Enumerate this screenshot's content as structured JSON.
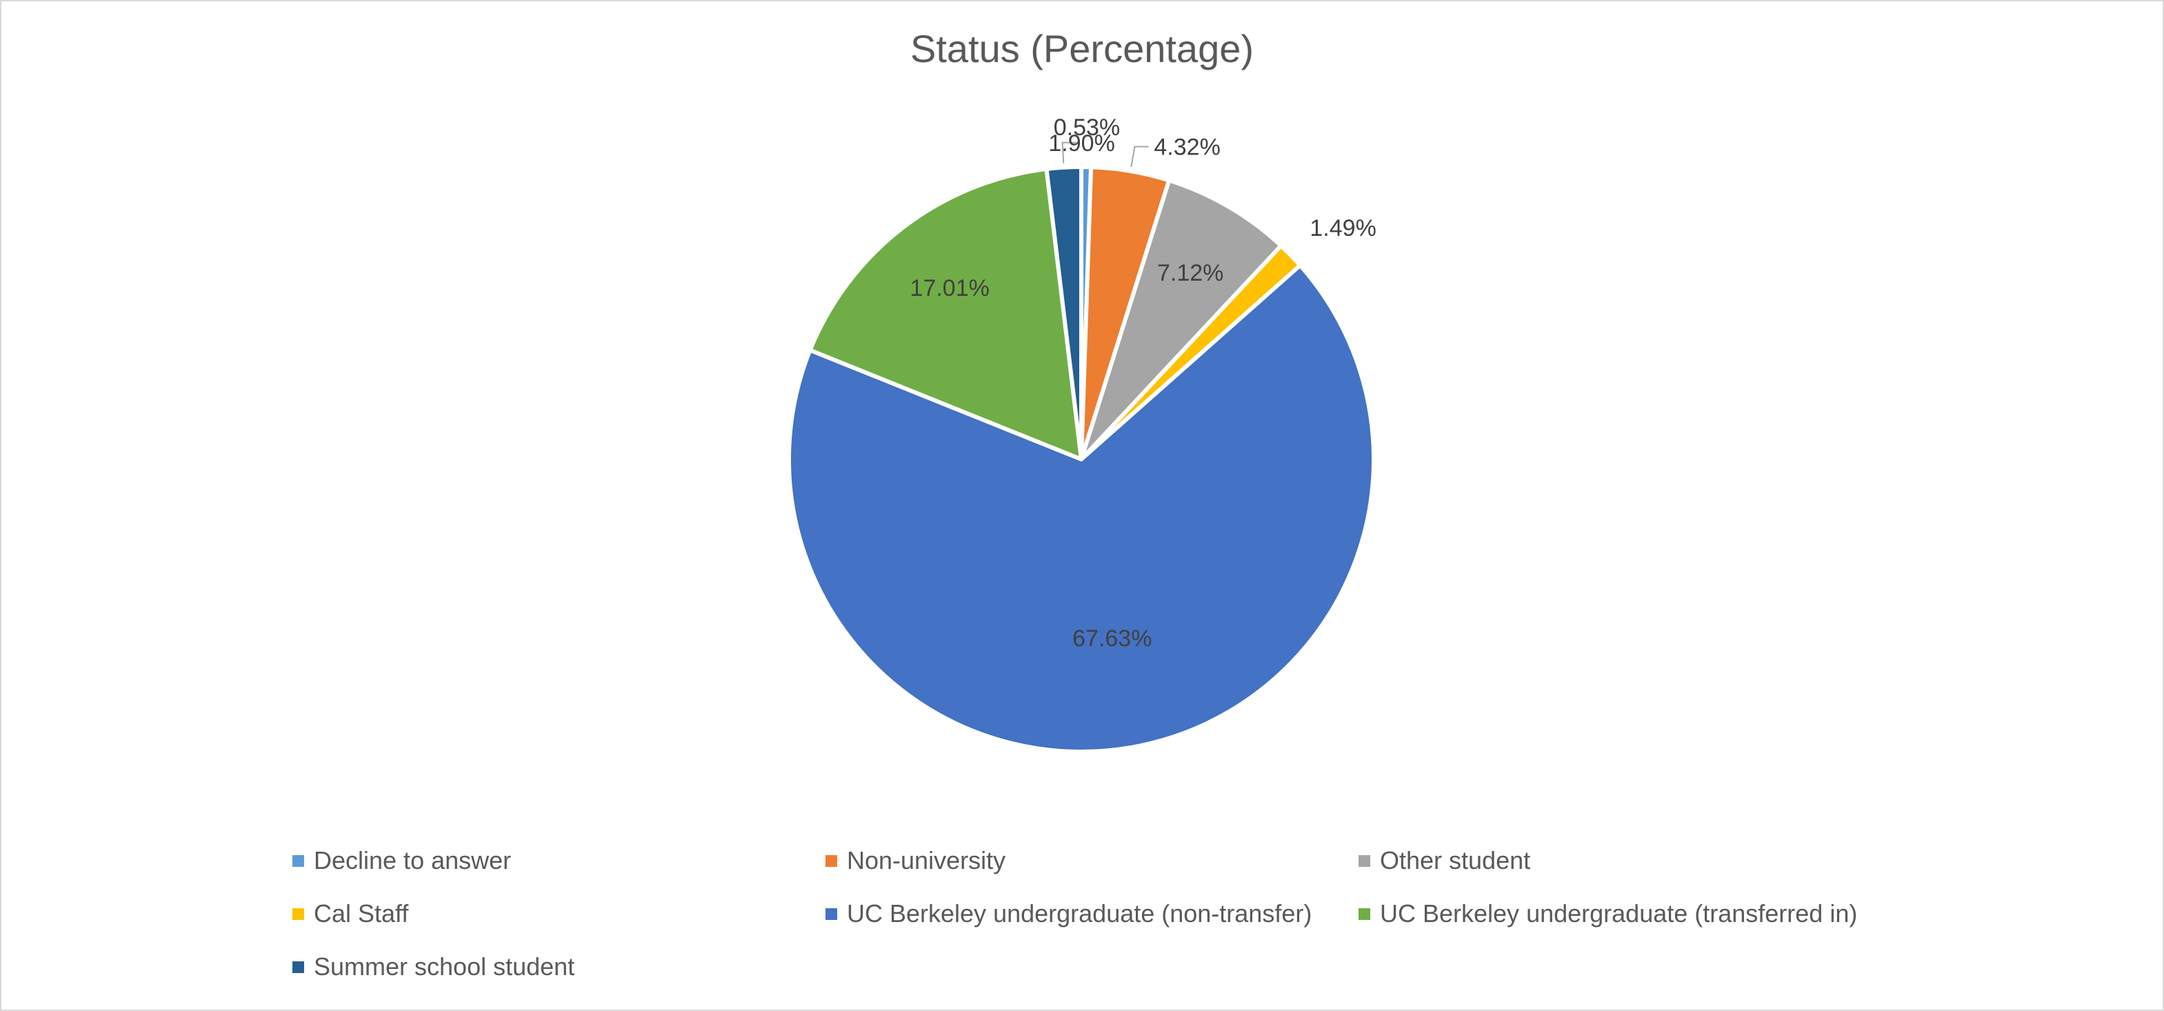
{
  "chart_data": {
    "type": "pie",
    "title": "Status (Percentage)",
    "slices": [
      {
        "label": "Decline to answer",
        "value": 0.53,
        "display": "0.53%",
        "color": "#5B9BD5",
        "label_pos": "outside",
        "leader": false
      },
      {
        "label": "Non-university",
        "value": 4.32,
        "display": "4.32%",
        "color": "#ED7D31",
        "label_pos": "outside",
        "leader": true
      },
      {
        "label": "Other student",
        "value": 7.12,
        "display": "7.12%",
        "color": "#A5A5A5",
        "label_pos": "inside",
        "leader": false
      },
      {
        "label": "Cal Staff",
        "value": 1.49,
        "display": "1.49%",
        "color": "#FFC000",
        "label_pos": "outside",
        "leader": false
      },
      {
        "label": "UC Berkeley undergraduate (non-transfer)",
        "value": 67.63,
        "display": "67.63%",
        "color": "#4472C4",
        "label_pos": "inside",
        "leader": false
      },
      {
        "label": "UC Berkeley undergraduate (transferred in)",
        "value": 17.01,
        "display": "17.01%",
        "color": "#70AD47",
        "label_pos": "inside",
        "leader": false
      },
      {
        "label": "Summer school student",
        "value": 1.9,
        "display": "1.90%",
        "color": "#255E91",
        "label_pos": "outside",
        "leader": true
      }
    ],
    "legend": {
      "position": "bottom",
      "columns": 3
    }
  }
}
